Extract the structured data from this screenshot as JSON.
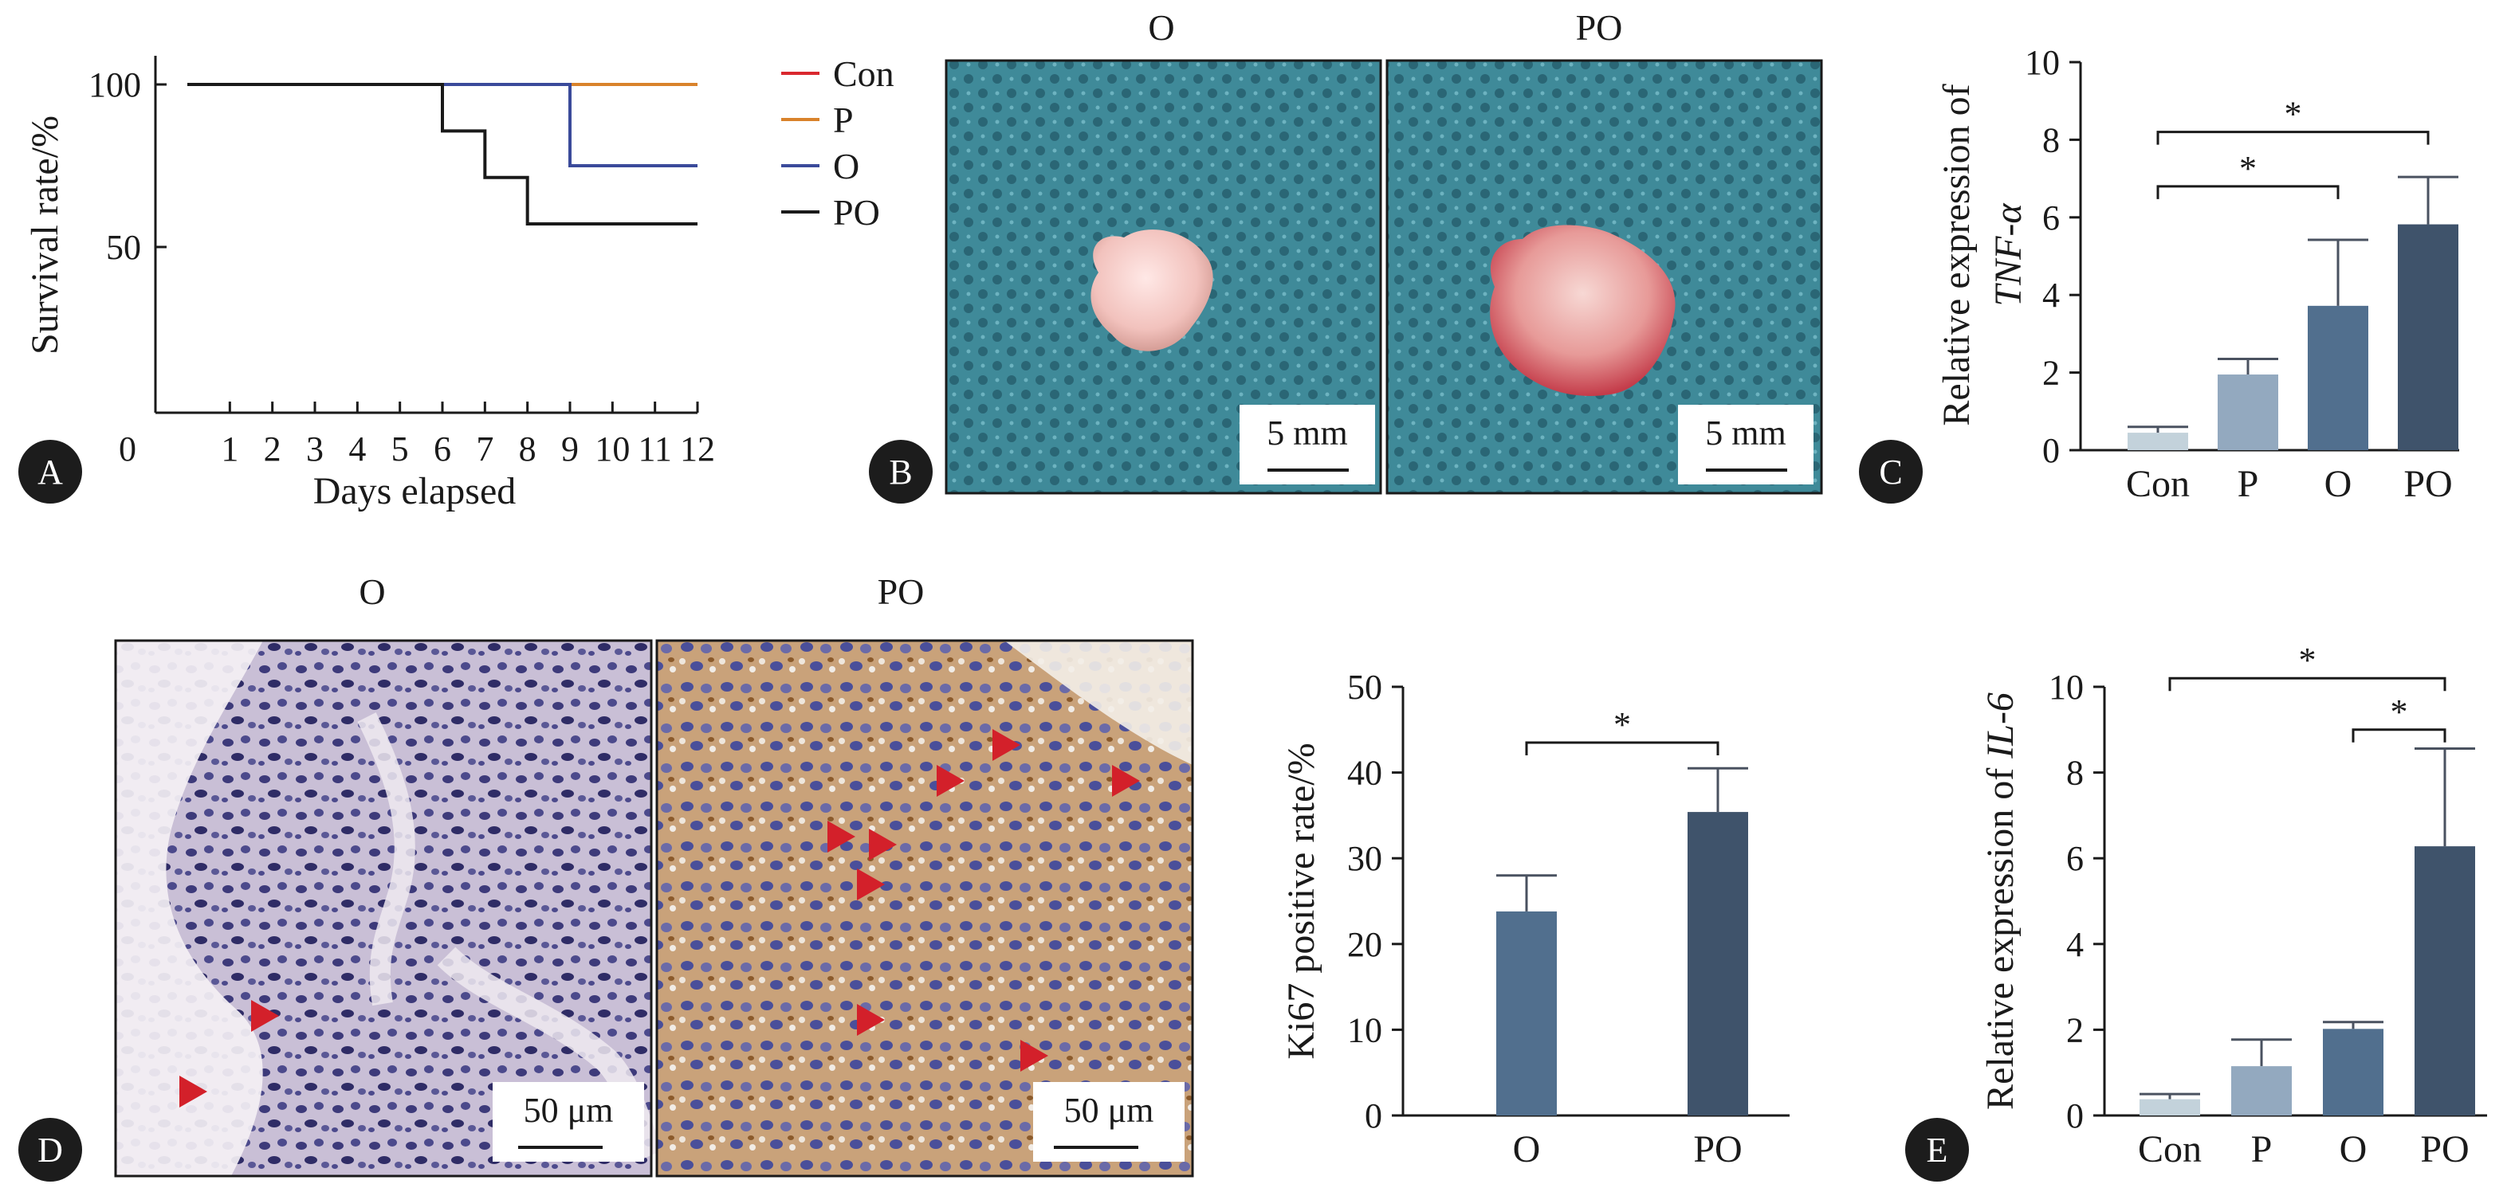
{
  "panel_labels": {
    "a": "A",
    "b": "B",
    "c": "C",
    "d": "D",
    "e": "E"
  },
  "photo_titles": {
    "b_left": "O",
    "b_right": "PO",
    "d_left": "O",
    "d_right": "PO"
  },
  "scale_labels": {
    "b_left": "5 mm",
    "b_right": "5 mm",
    "d_left": "50 μm",
    "d_right": "50 μm"
  },
  "chart_data": [
    {
      "id": "A",
      "type": "line",
      "chart_style": "step",
      "xlabel": "Days elapsed",
      "ylabel": "Survival rate/%",
      "x_ticks": [
        "0",
        "1",
        "2",
        "3",
        "4",
        "5",
        "6",
        "7",
        "8",
        "9",
        "10",
        "11",
        "12"
      ],
      "y_ticks": [
        {
          "value": 50,
          "label": "50"
        },
        {
          "value": 100,
          "label": "100"
        }
      ],
      "xlim": [
        0,
        12
      ],
      "ylim": [
        0,
        100
      ],
      "legend_position": "top-right",
      "series": [
        {
          "name": "Con",
          "color": "#d9282f",
          "x": [
            0,
            12
          ],
          "y": [
            100,
            100
          ]
        },
        {
          "name": "P",
          "color": "#d9822b",
          "x": [
            0,
            12
          ],
          "y": [
            100,
            100
          ]
        },
        {
          "name": "O",
          "color": "#3a4a9a",
          "x": [
            0,
            9,
            9,
            12
          ],
          "y": [
            100,
            100,
            75,
            75
          ]
        },
        {
          "name": "PO",
          "color": "#1a1a1a",
          "x": [
            0,
            6,
            6,
            7,
            7,
            8,
            8,
            12
          ],
          "y": [
            100,
            100,
            85.7,
            85.7,
            71.4,
            71.4,
            57.1,
            57.1
          ]
        }
      ]
    },
    {
      "id": "C",
      "type": "bar",
      "categories": [
        "Con",
        "P",
        "O",
        "PO"
      ],
      "values": [
        0.45,
        1.95,
        3.72,
        5.82
      ],
      "errors": [
        0.15,
        0.4,
        1.7,
        1.22
      ],
      "colors": [
        "#c3d2db",
        "#93a9bf",
        "#516f8e",
        "#3f536b"
      ],
      "ylabel_line1": "Relative expression of",
      "ylabel_line2": "TNF-α",
      "y_ticks": [
        "0",
        "2",
        "4",
        "6",
        "8",
        "10"
      ],
      "ylim": [
        0,
        10
      ],
      "significance": [
        {
          "from": 0,
          "to": 2,
          "y": 6.8,
          "label": "*"
        },
        {
          "from": 0,
          "to": 3,
          "y": 8.2,
          "label": "*"
        }
      ]
    },
    {
      "id": "D",
      "type": "bar",
      "categories": [
        "O",
        "PO"
      ],
      "values": [
        23.8,
        35.4
      ],
      "errors": [
        4.2,
        5.1
      ],
      "colors": [
        "#516f8e",
        "#3f536b"
      ],
      "ylabel": "Ki67 positive rate/%",
      "y_ticks": [
        "0",
        "10",
        "20",
        "30",
        "40",
        "50"
      ],
      "ylim": [
        0,
        50
      ],
      "significance": [
        {
          "from": 0,
          "to": 1,
          "y": 43.5,
          "label": "*"
        }
      ]
    },
    {
      "id": "E",
      "type": "bar",
      "categories": [
        "Con",
        "P",
        "O",
        "PO"
      ],
      "values": [
        0.38,
        1.15,
        2.02,
        6.28
      ],
      "errors": [
        0.12,
        0.62,
        0.16,
        2.28
      ],
      "colors": [
        "#c3d2db",
        "#93a9bf",
        "#516f8e",
        "#3f536b"
      ],
      "ylabel_prefix": "Relative expression of ",
      "ylabel_italic": "IL-6",
      "y_ticks": [
        "0",
        "2",
        "4",
        "6",
        "8",
        "10"
      ],
      "ylim": [
        0,
        10
      ],
      "significance": [
        {
          "from": 0,
          "to": 3,
          "y": 10.2,
          "label": "*"
        },
        {
          "from": 2,
          "to": 3,
          "y": 9.0,
          "label": "*"
        }
      ]
    }
  ]
}
